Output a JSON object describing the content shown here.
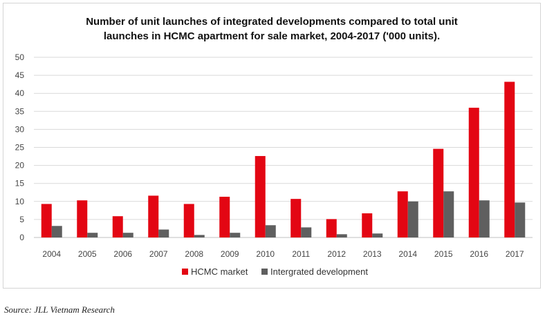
{
  "chart_data": {
    "type": "bar",
    "title_lines": [
      "Number of unit launches of integrated developments compared to total unit",
      "launches in HCMC apartment for sale market, 2004-2017 ('000 units)."
    ],
    "categories": [
      "2004",
      "2005",
      "2006",
      "2007",
      "2008",
      "2009",
      "2010",
      "2011",
      "2012",
      "2013",
      "2014",
      "2015",
      "2016",
      "2017"
    ],
    "series": [
      {
        "name": "HCMC market",
        "color": "#e30613",
        "values": [
          9.3,
          10.3,
          5.9,
          11.6,
          9.3,
          11.3,
          22.6,
          10.7,
          5.1,
          6.7,
          12.8,
          24.6,
          36.0,
          43.2
        ]
      },
      {
        "name": "Intergrated development",
        "color": "#5f5f5f",
        "values": [
          3.2,
          1.3,
          1.3,
          2.2,
          0.7,
          1.3,
          3.4,
          2.8,
          0.9,
          1.1,
          10.0,
          12.8,
          10.3,
          9.7
        ]
      }
    ],
    "ylim": [
      0,
      50
    ],
    "yticks": [
      0,
      5,
      10,
      15,
      20,
      25,
      30,
      35,
      40,
      45,
      50
    ],
    "grid": true,
    "legend_position": "bottom-center"
  },
  "source": "Source: JLL Vietnam Research"
}
